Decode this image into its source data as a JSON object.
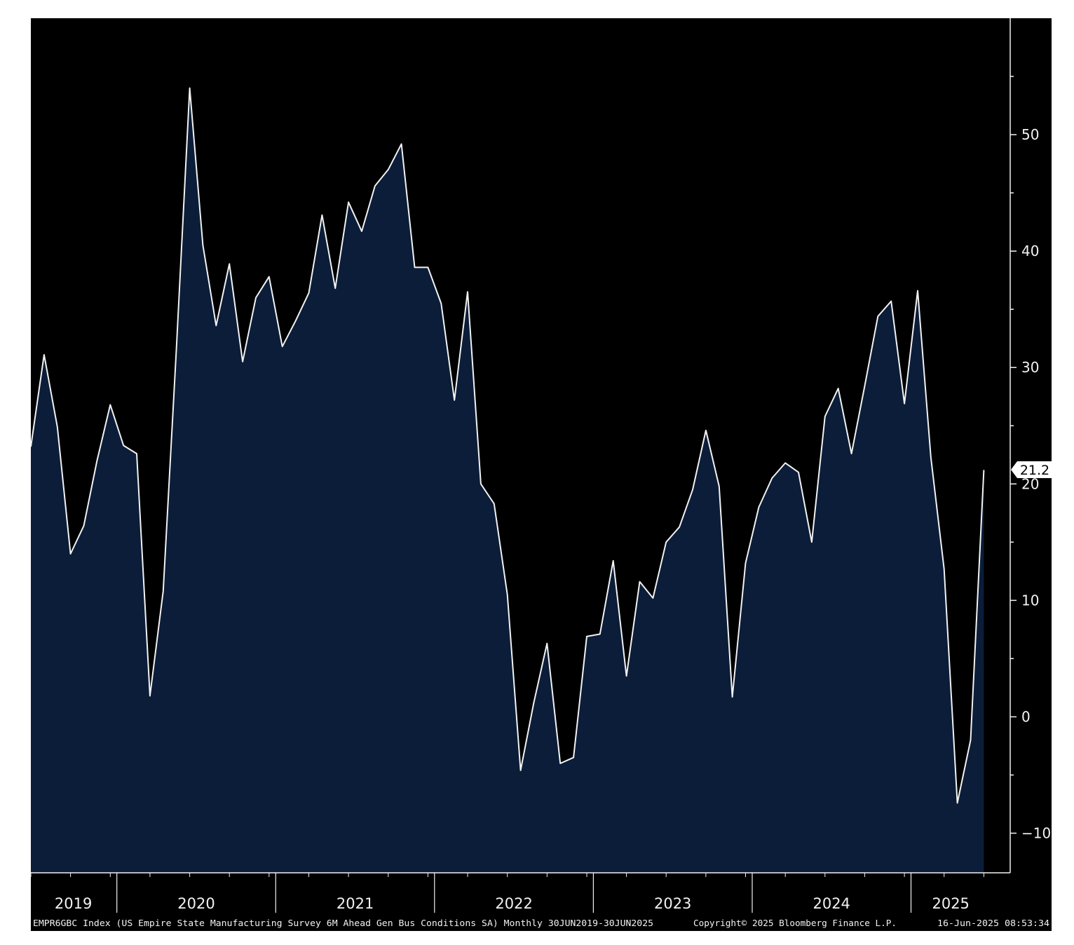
{
  "chart_data": {
    "type": "area",
    "title": "",
    "xlabel": "",
    "ylabel": "",
    "series": [
      {
        "ticker": "EMPR6GBC Index",
        "start": "2019-06",
        "end": "2025-06",
        "frequency": "Monthly",
        "values": [
          23.2,
          31.1,
          24.9,
          14.0,
          16.4,
          22.0,
          26.8,
          23.3,
          22.6,
          1.8,
          10.8,
          31.7,
          54.0,
          40.5,
          33.6,
          38.9,
          30.5,
          36.0,
          37.8,
          31.8,
          34.0,
          36.4,
          43.1,
          36.8,
          44.2,
          41.7,
          45.6,
          47.0,
          49.2,
          38.6,
          38.6,
          35.5,
          27.2,
          36.5,
          20.0,
          18.3,
          10.5,
          -4.6,
          1.2,
          6.3,
          -4.0,
          -3.5,
          6.9,
          7.1,
          13.4,
          3.5,
          11.6,
          10.2,
          15.0,
          16.3,
          19.5,
          24.6,
          19.8,
          1.7,
          13.2,
          18.0,
          20.5,
          21.8,
          21.0,
          15.0,
          25.8,
          28.2,
          22.6,
          28.4,
          34.4,
          35.7,
          26.9,
          36.6,
          22.3,
          12.7,
          -7.4,
          -2.0,
          21.2
        ]
      }
    ],
    "ylim": [
      -13.4,
      60.0
    ],
    "yticks": [
      -10,
      0,
      10,
      20,
      30,
      40,
      50
    ],
    "xticks": [
      "2019",
      "2020",
      "2021",
      "2022",
      "2023",
      "2024",
      "2025"
    ],
    "last_value_label": "21.2",
    "grid": false,
    "legend": "none",
    "colors": {
      "background": "#000000",
      "area_fill": "#0b1d39",
      "line": "#f2f2f2",
      "text": "#f2f2f2",
      "page": "#ffffff"
    }
  },
  "footer": {
    "description": "EMPR6GBC Index (US Empire State Manufacturing Survey 6M Ahead Gen Bus Conditions SA)  Monthly 30JUN2019-30JUN2025",
    "copyright": "Copyright© 2025 Bloomberg Finance L.P.",
    "timestamp": "16-Jun-2025 08:53:34"
  }
}
